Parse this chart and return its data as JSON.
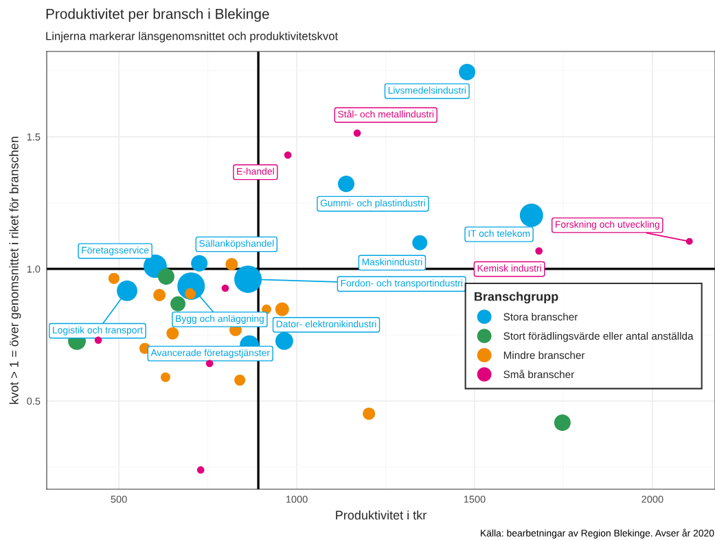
{
  "chart_data": {
    "type": "bubble",
    "title": "Produktivitet per bransch i Blekinge",
    "subtitle": "Linjerna markerar länsgenomsnittet och produktivitetskvot",
    "xlabel": "Produktivitet i tkr",
    "ylabel": "kvot > 1 = över genomsnittet i riket för branschen",
    "legend_title": "Branschgrupp",
    "xlim": [
      297,
      2176
    ],
    "ylim": [
      0.166,
      1.823
    ],
    "xticks": [
      500,
      1000,
      1500,
      2000
    ],
    "yticks": [
      {
        "value": 0.5,
        "label": "0.5"
      },
      {
        "value": 1,
        "label": "1.0"
      },
      {
        "value": 1.5,
        "label": "1.5"
      }
    ],
    "grid": true,
    "legend": "right",
    "marker": "circle",
    "series": [
      {
        "name": "Stora branscher",
        "color": "#00a5e3",
        "x": [
          1479,
          1139,
          1660,
          1346,
          602,
          726,
          703,
          863,
          523,
          867,
          965
        ],
        "values": [
          1.745,
          1.322,
          1.203,
          1.099,
          1.01,
          1.021,
          0.935,
          0.961,
          0.917,
          0.712,
          0.727
        ],
        "sizes": [
          0.36,
          0.36,
          0.72,
          0.3,
          0.72,
          0.36,
          1,
          1,
          0.56,
          0.49,
          0.42
        ]
      },
      {
        "name": "Stort förädlingsvärde eller antal anställda",
        "color": "#2e9a53",
        "x": [
          633,
          382,
          666,
          1747
        ],
        "values": [
          0.971,
          0.727,
          0.868,
          0.418
        ],
        "sizes": [
          0.36,
          0.42,
          0.3,
          0.36
        ]
      },
      {
        "name": "Mindre branscher",
        "color": "#f18a00",
        "x": [
          486,
          614,
          817,
          915,
          959,
          828,
          651,
          573,
          631,
          840,
          1203,
          701
        ],
        "values": [
          0.964,
          0.901,
          1.018,
          0.847,
          0.847,
          0.769,
          0.756,
          0.699,
          0.59,
          0.579,
          0.452,
          0.906
        ],
        "sizes": [
          0.16,
          0.2,
          0.2,
          0.12,
          0.25,
          0.2,
          0.2,
          0.16,
          0.12,
          0.16,
          0.2,
          0.16
        ]
      },
      {
        "name": "Små branscher",
        "color": "#e0007c",
        "x": [
          1170,
          975,
          1681,
          2104,
          799,
          442,
          755,
          730
        ],
        "values": [
          1.514,
          1.431,
          1.068,
          1.104,
          0.927,
          0.73,
          0.642,
          0.239
        ],
        "sizes": [
          0.07,
          0.07,
          0.07,
          0.06,
          0.07,
          0.07,
          0.07,
          0.07
        ]
      }
    ],
    "ref_lines": [
      {
        "axis": "x",
        "value": 892,
        "color": "#000000"
      },
      {
        "axis": "y",
        "value": 1,
        "color": "#000000"
      }
    ],
    "annotations": [
      {
        "text": "Livsmedelsindustri",
        "x": 1479,
        "y": 1.745
      },
      {
        "text": "Stål- och metallindustri",
        "x": 1170,
        "y": 1.514
      },
      {
        "text": "E-handel",
        "x": 975,
        "y": 1.431
      },
      {
        "text": "Gummi- och plastindustri",
        "x": 1139,
        "y": 1.322
      },
      {
        "text": "IT och telekom",
        "x": 1660,
        "y": 1.203
      },
      {
        "text": "Forskning och utveckling",
        "x": 2104,
        "y": 1.104
      },
      {
        "text": "Kemisk industri",
        "x": 1681,
        "y": 1.068
      },
      {
        "text": "Maskinindustri",
        "x": 1346,
        "y": 1.099
      },
      {
        "text": "Företagsservice",
        "x": 602,
        "y": 1.01
      },
      {
        "text": "Sällanköpshandel",
        "x": 726,
        "y": 1.021
      },
      {
        "text": "Fordon- och transportindustri",
        "x": 863,
        "y": 0.961
      },
      {
        "text": "Bygg och anläggning",
        "x": 703,
        "y": 0.935
      },
      {
        "text": "Logistik och transport",
        "x": 523,
        "y": 0.917
      },
      {
        "text": "Dator- elektronikindustri",
        "x": 965,
        "y": 0.727
      },
      {
        "text": "Avancerade företagstjänster",
        "x": 867,
        "y": 0.712
      },
      "Källa: bearbetningar av Region Blekinge. Avser år 2020"
    ]
  }
}
